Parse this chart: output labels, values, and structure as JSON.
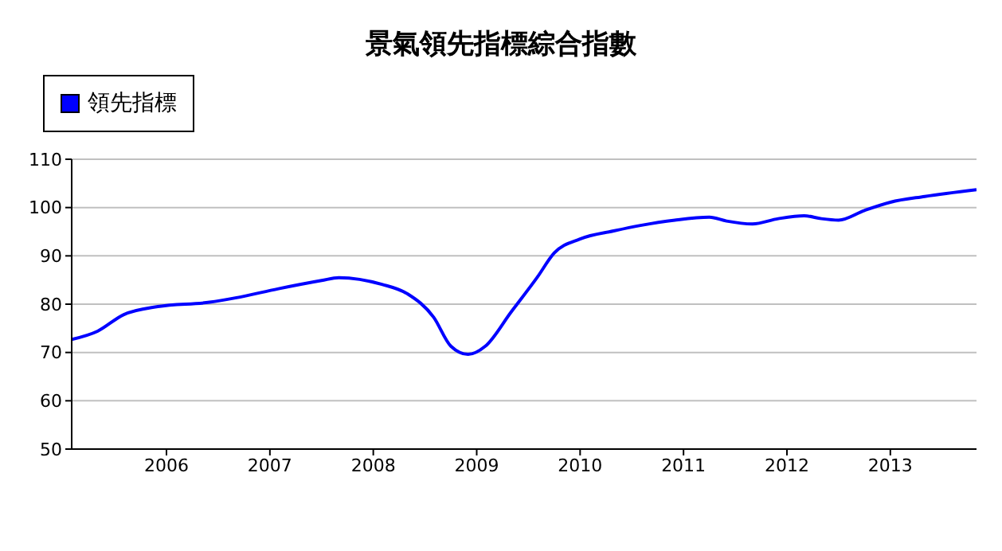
{
  "chart_data": {
    "type": "line",
    "title": "景氣領先指標綜合指數",
    "x": [
      "2005-02",
      "2005-05",
      "2005-08",
      "2005-12",
      "2006-06",
      "2006-09",
      "2007-02",
      "2007-07",
      "2007-09",
      "2008-02",
      "2008-05",
      "2008-08",
      "2008-10",
      "2008-12",
      "2009-02",
      "2009-05",
      "2009-08",
      "2009-10",
      "2010-01",
      "2010-05",
      "2010-08",
      "2010-12",
      "2011-04",
      "2011-06",
      "2011-09",
      "2011-12",
      "2012-03",
      "2012-05",
      "2012-07",
      "2012-10",
      "2013-01",
      "2013-05",
      "2013-11"
    ],
    "series": [
      {
        "name": "領先指標",
        "color": "#0000ff",
        "values": [
          72.7,
          74.4,
          77.8,
          79.5,
          80.4,
          81.3,
          83.2,
          84.9,
          85.5,
          84.1,
          82.1,
          77.3,
          71.3,
          69.6,
          71.3,
          78.4,
          85.5,
          90.6,
          93.5,
          95.2,
          96.3,
          97.4,
          98.0,
          97.2,
          96.6,
          97.7,
          98.3,
          97.7,
          97.4,
          99.4,
          101.1,
          102.3,
          103.7
        ]
      }
    ],
    "xlim": [
      "2005-02",
      "2013-11"
    ],
    "xticks": [
      {
        "value": "2006",
        "label": "2006"
      },
      {
        "value": "2007",
        "label": "2007"
      },
      {
        "value": "2008",
        "label": "2008"
      },
      {
        "value": "2009",
        "label": "2009"
      },
      {
        "value": "2010",
        "label": "2010"
      },
      {
        "value": "2011",
        "label": "2011"
      },
      {
        "value": "2012",
        "label": "2012"
      },
      {
        "value": "2013",
        "label": "2013"
      }
    ],
    "ylim": [
      50,
      110
    ],
    "yticks": [
      50,
      60,
      70,
      80,
      90,
      100,
      110
    ],
    "grid": "y",
    "legend": "top left",
    "marker": "none",
    "line_style": "solid"
  }
}
